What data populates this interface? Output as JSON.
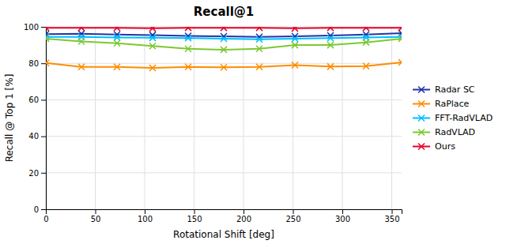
{
  "chart_data": {
    "type": "line",
    "title": "Recall@1",
    "xlabel": "Rotational Shift [deg]",
    "ylabel": "Recall @ Top 1 [%]",
    "x": [
      0,
      36,
      72,
      108,
      144,
      180,
      216,
      252,
      288,
      324,
      360
    ],
    "series": [
      {
        "name": "Radar SC",
        "color": "#2233aa",
        "values": [
          96.0,
          96.2,
          95.8,
          95.5,
          95.0,
          94.8,
          94.5,
          94.8,
          95.2,
          95.8,
          96.5
        ]
      },
      {
        "name": "RaPlace",
        "color": "#ff8c00",
        "values": [
          80.2,
          78.0,
          78.0,
          77.5,
          78.0,
          77.8,
          78.0,
          79.0,
          78.2,
          78.5,
          80.5
        ]
      },
      {
        "name": "FFT-RadVLAD",
        "color": "#00bfff",
        "values": [
          94.5,
          94.5,
          94.2,
          94.0,
          93.8,
          93.5,
          93.2,
          93.5,
          93.8,
          94.2,
          94.5
        ]
      },
      {
        "name": "RadVLAD",
        "color": "#7dc832",
        "values": [
          93.5,
          92.0,
          91.0,
          89.5,
          88.0,
          87.5,
          88.0,
          90.0,
          90.0,
          91.5,
          93.5
        ]
      },
      {
        "name": "Ours",
        "color": "#e8002a",
        "values": [
          99.5,
          99.5,
          99.5,
          99.2,
          99.5,
          99.5,
          99.5,
          99.2,
          99.5,
          99.5,
          99.5
        ]
      }
    ],
    "xlim": [
      0,
      360
    ],
    "ylim": [
      0,
      100
    ],
    "xticks": [
      0,
      50,
      100,
      150,
      200,
      250,
      300,
      350
    ],
    "yticks": [
      0,
      20,
      40,
      60,
      80,
      100
    ],
    "grid": true,
    "legend": "right",
    "marker": "x"
  }
}
